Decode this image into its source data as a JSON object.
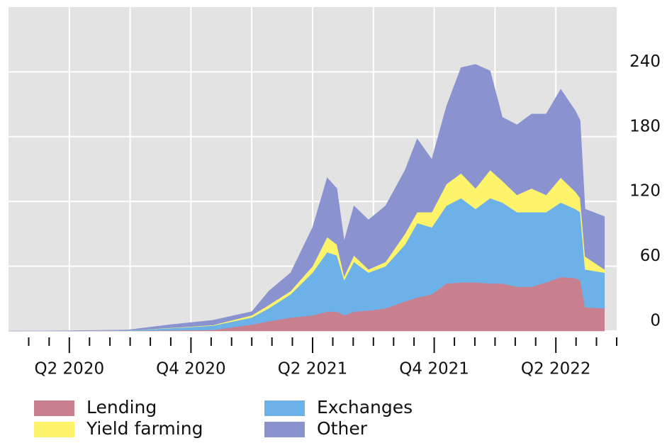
{
  "chart_data": {
    "type": "stacked_area",
    "x": [
      2020.0,
      2020.26,
      2020.49,
      2020.66,
      2020.84,
      2021.0,
      2021.07,
      2021.16,
      2021.25,
      2021.31,
      2021.35,
      2021.38,
      2021.42,
      2021.48,
      2021.55,
      2021.63,
      2021.68,
      2021.74,
      2021.8,
      2021.86,
      2021.92,
      2021.98,
      2022.03,
      2022.09,
      2022.15,
      2022.21,
      2022.27,
      2022.33,
      2022.35,
      2022.37,
      2022.45
    ],
    "series": [
      {
        "name": "Lending",
        "color": "#c9808e",
        "values": [
          0,
          0,
          0.2,
          0.5,
          1,
          6,
          9,
          12.5,
          14.5,
          18,
          18,
          14.5,
          18,
          19,
          21,
          27.5,
          31,
          34,
          44,
          45,
          45,
          44,
          44,
          41,
          41,
          45,
          50,
          49,
          47,
          22,
          21
        ]
      },
      {
        "name": "Exchanges",
        "color": "#6cb2e8",
        "values": [
          0,
          0.1,
          0.3,
          2,
          4,
          6.5,
          12,
          21.5,
          39.5,
          55,
          52,
          32.5,
          46,
          35,
          39,
          52.5,
          69,
          62,
          72,
          78,
          68,
          79,
          75,
          69,
          69,
          65,
          69,
          64,
          63,
          35,
          33
        ]
      },
      {
        "name": "Yield farming",
        "color": "#fef46b",
        "values": [
          0,
          0,
          0,
          0.3,
          0.5,
          2,
          3,
          3,
          6,
          14,
          10,
          3.5,
          6,
          3,
          4,
          10,
          10,
          14,
          20,
          23,
          19,
          26,
          20,
          16,
          22,
          16,
          23,
          16,
          13,
          12,
          3
        ]
      },
      {
        "name": "Other",
        "color": "#8a93d0",
        "values": [
          0,
          0.2,
          0.5,
          3,
          4.5,
          3.5,
          13,
          17,
          36,
          55,
          52,
          33,
          46,
          46,
          52,
          59,
          68,
          49,
          72,
          98,
          115,
          92,
          59,
          65,
          69,
          75,
          82,
          75,
          72,
          44,
          49
        ]
      }
    ],
    "xlim": [
      2020.0,
      2022.5
    ],
    "xticks": [
      {
        "value": 2020.25,
        "label": "Q2 2020"
      },
      {
        "value": 2020.75,
        "label": "Q4 2020"
      },
      {
        "value": 2021.25,
        "label": "Q2 2021"
      },
      {
        "value": 2021.75,
        "label": "Q4 2021"
      },
      {
        "value": 2022.25,
        "label": "Q2 2022"
      }
    ],
    "xminorticks": [
      2020.083,
      2020.167,
      2020.333,
      2020.417,
      2020.5,
      2020.583,
      2020.667,
      2020.833,
      2020.917,
      2021,
      2021.083,
      2021.167,
      2021.333,
      2021.417,
      2021.5,
      2021.583,
      2021.667,
      2021.833,
      2021.917,
      2022,
      2022.083,
      2022.167,
      2022.333,
      2022.417,
      2022.5
    ],
    "xgridlines": [
      2020.5,
      2021,
      2021.5,
      2022
    ],
    "ylim": [
      0,
      300
    ],
    "yticks": [
      0,
      60,
      120,
      180,
      240
    ],
    "grid": true
  }
}
